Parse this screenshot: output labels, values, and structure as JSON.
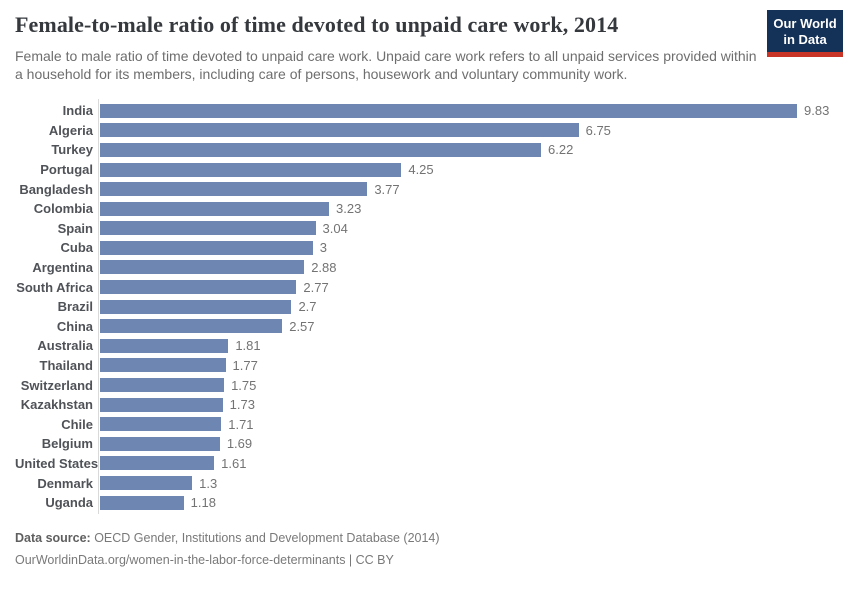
{
  "header": {
    "title": "Female-to-male ratio of time devoted to unpaid care work, 2014",
    "subtitle": "Female to male ratio of time devoted to unpaid care work. Unpaid care work refers to all unpaid services provided within a household for its members, including care of persons, housework and voluntary community work.",
    "logo": {
      "line1": "Our World",
      "line2": "in Data",
      "bg_color": "#143157",
      "accent_color": "#c93527"
    }
  },
  "chart_data": {
    "type": "bar",
    "orientation": "horizontal",
    "title": "Female-to-male ratio of time devoted to unpaid care work, 2014",
    "categories": [
      "India",
      "Algeria",
      "Turkey",
      "Portugal",
      "Bangladesh",
      "Colombia",
      "Spain",
      "Cuba",
      "Argentina",
      "South Africa",
      "Brazil",
      "China",
      "Australia",
      "Thailand",
      "Switzerland",
      "Kazakhstan",
      "Chile",
      "Belgium",
      "United States",
      "Denmark",
      "Uganda"
    ],
    "values": [
      9.83,
      6.75,
      6.22,
      4.25,
      3.77,
      3.23,
      3.04,
      3,
      2.88,
      2.77,
      2.7,
      2.57,
      1.81,
      1.77,
      1.75,
      1.73,
      1.71,
      1.69,
      1.61,
      1.3,
      1.18
    ],
    "value_labels": [
      "9.83",
      "6.75",
      "6.22",
      "4.25",
      "3.77",
      "3.23",
      "3.04",
      "3",
      "2.88",
      "2.77",
      "2.7",
      "2.57",
      "1.81",
      "1.77",
      "1.75",
      "1.73",
      "1.71",
      "1.69",
      "1.61",
      "1.3",
      "1.18"
    ],
    "xlim": [
      0,
      9.83
    ],
    "bar_color": "#6e87b2",
    "grid": false,
    "legend": false
  },
  "footer": {
    "source_label": "Data source:",
    "source_text": " OECD Gender, Institutions and Development Database (2014)",
    "url_line": "OurWorldinData.org/women-in-the-labor-force-determinants | CC BY"
  }
}
